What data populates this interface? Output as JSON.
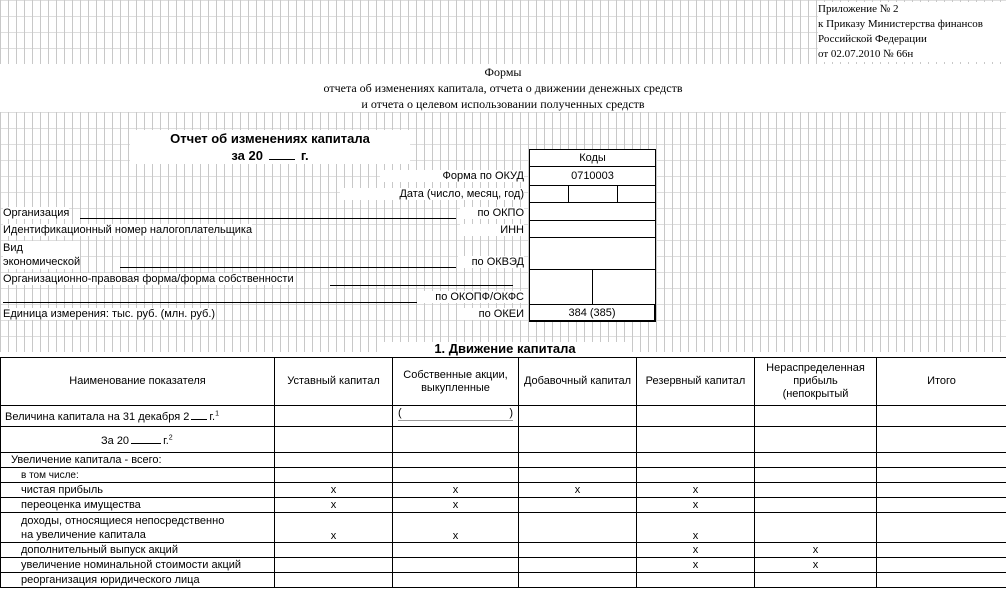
{
  "appendix": {
    "line1": "Приложение № 2",
    "line2": "к Приказу Министерства финансов",
    "line3": "Российской Федерации",
    "line4": "от 02.07.2010 № 66н"
  },
  "forms_title": {
    "line1": "Формы",
    "line2": "отчета об изменениях капитала, отчета о движении денежных средств",
    "line3": "и отчета о целевом использовании полученных средств"
  },
  "report": {
    "title": "Отчет об изменениях капитала",
    "period_prefix": "за 20",
    "period_suffix": "г."
  },
  "codes": {
    "header": "Коды",
    "okud_label": "Форма по ОКУД",
    "okud_value": "0710003",
    "date_label": "Дата (число, месяц, год)",
    "okpo_label": "по ОКПО",
    "inn_label": "ИНН",
    "okved_label": "по ОКВЭД",
    "okopf_label": "по ОКОПФ/ОКФС",
    "okei_label": "по ОКЕИ",
    "okei_value": "384 (385)"
  },
  "fields": {
    "organization": "Организация",
    "inn": "Идентификационный номер налогоплательщика",
    "activity_line1": "Вид",
    "activity_line2": "экономической",
    "legal_form": "Организационно-правовая форма/форма собственности",
    "unit": "Единица измерения: тыс. руб. (млн. руб.)"
  },
  "section": {
    "title": "1. Движение капитала"
  },
  "table": {
    "headers": [
      "Наименование показателя",
      "Уставный капитал",
      "Собственные акции, выкупленные",
      "Добавочный капитал",
      "Резервный капитал",
      "Нераспределенная прибыль (непокрытый",
      "Итого"
    ],
    "rows": [
      {
        "label": "Величина капитала на 31 декабря  2",
        "label_suffix": "г.",
        "sup": "1",
        "marks": [
          "",
          "( )",
          "",
          "",
          "",
          ""
        ]
      },
      {
        "label": "За 20",
        "label_suffix": "г.",
        "sup": "2",
        "marks": [
          "",
          "",
          "",
          "",
          "",
          ""
        ]
      },
      {
        "label": "Увеличение капитала - всего:",
        "marks": [
          "",
          "",
          "",
          "",
          "",
          ""
        ]
      },
      {
        "label": "в том числе:",
        "marks": [
          "",
          "",
          "",
          "",
          "",
          ""
        ]
      },
      {
        "label": "чистая прибыль",
        "marks": [
          "x",
          "x",
          "x",
          "x",
          "",
          ""
        ]
      },
      {
        "label": "переоценка имущества",
        "marks": [
          "x",
          "x",
          "",
          "x",
          "",
          ""
        ]
      },
      {
        "label": "доходы, относящиеся непосредственно",
        "label2": "на увеличение капитала",
        "marks": [
          "x",
          "x",
          "",
          "x",
          "",
          ""
        ]
      },
      {
        "label": "дополнительный выпуск акций",
        "marks": [
          "",
          "",
          "",
          "x",
          "x",
          ""
        ]
      },
      {
        "label": "увеличение номинальной стоимости акций",
        "marks": [
          "",
          "",
          "",
          "x",
          "x",
          ""
        ]
      },
      {
        "label": "реорганизация юридического лица",
        "marks": [
          "",
          "",
          "",
          "",
          "",
          ""
        ]
      }
    ]
  }
}
